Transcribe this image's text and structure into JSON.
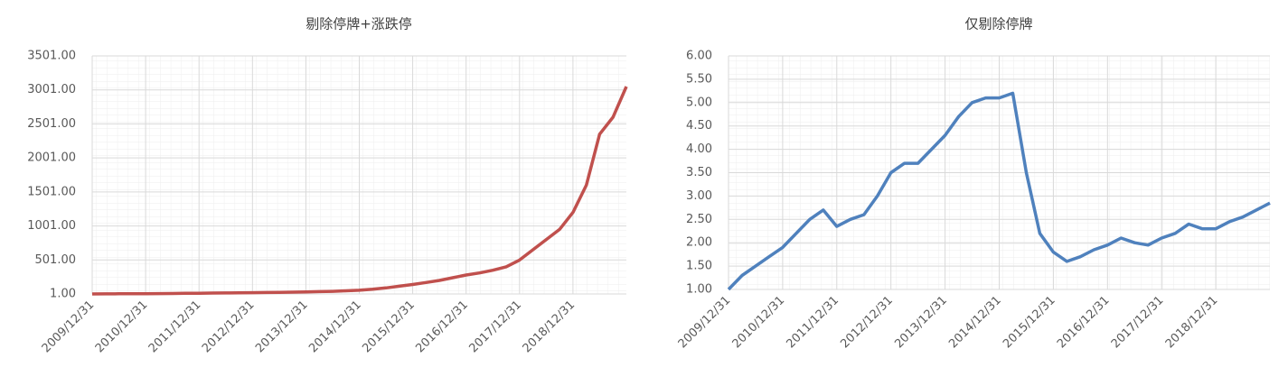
{
  "chart_data": [
    {
      "type": "line",
      "title": "剔除停牌+涨跌停",
      "categories": [
        "2009/12/31",
        null,
        null,
        null,
        "2010/12/31",
        null,
        null,
        null,
        "2011/12/31",
        null,
        null,
        null,
        "2012/12/31",
        null,
        null,
        null,
        "2013/12/31",
        null,
        null,
        null,
        "2014/12/31",
        null,
        null,
        null,
        "2015/12/31",
        null,
        null,
        null,
        "2016/12/31",
        null,
        null,
        null,
        "2017/12/31",
        null,
        null,
        null,
        "2018/12/31",
        null,
        null,
        null,
        null
      ],
      "series": [
        {
          "name": "剔除停牌+涨跌停",
          "color": "#c0504d",
          "values": [
            1,
            2,
            3,
            4,
            5,
            6,
            8,
            10,
            12,
            14,
            16,
            18,
            20,
            22,
            25,
            28,
            30,
            35,
            40,
            48,
            55,
            70,
            90,
            115,
            140,
            170,
            200,
            240,
            280,
            310,
            350,
            400,
            500,
            650,
            800,
            950,
            1200,
            1600,
            2350,
            2600,
            3050
          ]
        }
      ],
      "ylim": [
        1,
        3501
      ],
      "yticks": [
        {
          "value": 1,
          "label": "1.00"
        },
        {
          "value": 501,
          "label": "501.00"
        },
        {
          "value": 1001,
          "label": "1001.00"
        },
        {
          "value": 1501,
          "label": "1501.00"
        },
        {
          "value": 2001,
          "label": "2001.00"
        },
        {
          "value": 2501,
          "label": "2501.00"
        },
        {
          "value": 3001,
          "label": "3001.00"
        },
        {
          "value": 3501,
          "label": "3501.00"
        }
      ],
      "grid": true
    },
    {
      "type": "line",
      "title": "仅剔除停牌",
      "categories": [
        "2009/12/31",
        null,
        null,
        null,
        "2010/12/31",
        null,
        null,
        null,
        "2011/12/31",
        null,
        null,
        null,
        "2012/12/31",
        null,
        null,
        null,
        "2013/12/31",
        null,
        null,
        null,
        "2014/12/31",
        null,
        null,
        null,
        "2015/12/31",
        null,
        null,
        null,
        "2016/12/31",
        null,
        null,
        null,
        "2017/12/31",
        null,
        null,
        null,
        "2018/12/31",
        null,
        null,
        null,
        null
      ],
      "series": [
        {
          "name": "仅剔除停牌",
          "color": "#4f81bd",
          "values": [
            1.0,
            1.3,
            1.5,
            1.7,
            1.9,
            2.2,
            2.5,
            2.7,
            2.35,
            2.5,
            2.6,
            3.0,
            3.5,
            3.7,
            3.7,
            4.0,
            4.3,
            4.7,
            5.0,
            5.1,
            5.1,
            5.2,
            3.5,
            2.2,
            1.8,
            1.6,
            1.7,
            1.85,
            1.95,
            2.1,
            2.0,
            1.95,
            2.1,
            2.2,
            2.4,
            2.3,
            2.3,
            2.45,
            2.55,
            2.7,
            2.85
          ]
        }
      ],
      "ylim": [
        1,
        6
      ],
      "yticks": [
        {
          "value": 1,
          "label": "1.00"
        },
        {
          "value": 1.5,
          "label": "1.50"
        },
        {
          "value": 2,
          "label": "2.00"
        },
        {
          "value": 2.5,
          "label": "2.50"
        },
        {
          "value": 3,
          "label": "3.00"
        },
        {
          "value": 3.5,
          "label": "3.50"
        },
        {
          "value": 4,
          "label": "4.00"
        },
        {
          "value": 4.5,
          "label": "4.50"
        },
        {
          "value": 5,
          "label": "5.00"
        },
        {
          "value": 5.5,
          "label": "5.50"
        },
        {
          "value": 6,
          "label": "6.00"
        }
      ],
      "grid": true
    }
  ]
}
